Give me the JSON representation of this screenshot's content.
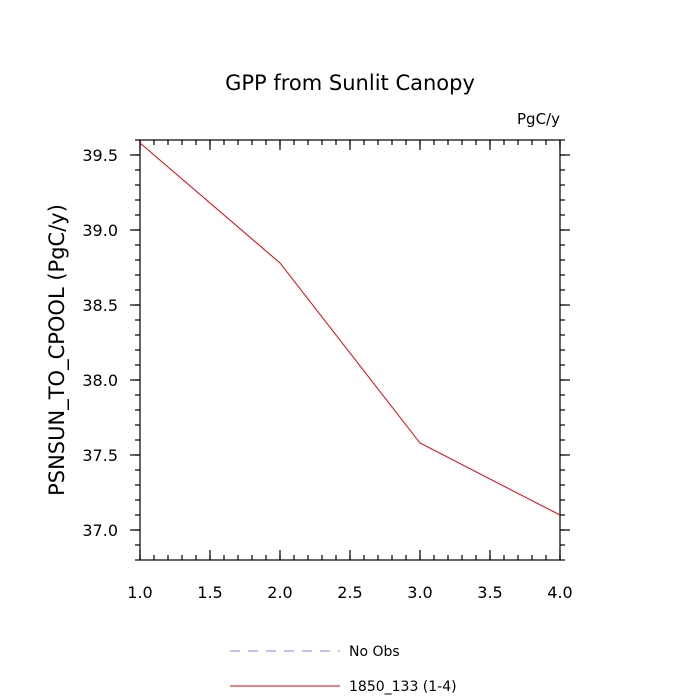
{
  "chart_data": {
    "type": "line",
    "title": "GPP from Sunlit Canopy",
    "units_label": "PgC/y",
    "ylabel": "PSNSUN_TO_CPOOL  (PgC/y)",
    "xlabel": "",
    "xlim": [
      1.0,
      4.0
    ],
    "ylim": [
      36.8,
      39.6
    ],
    "x_ticks": [
      1.0,
      1.5,
      2.0,
      2.5,
      3.0,
      3.5,
      4.0
    ],
    "x_tick_labels": [
      "1.0",
      "1.5",
      "2.0",
      "2.5",
      "3.0",
      "3.5",
      "4.0"
    ],
    "y_ticks": [
      37.0,
      37.5,
      38.0,
      38.5,
      39.0,
      39.5
    ],
    "y_tick_labels": [
      "37.0",
      "37.5",
      "38.0",
      "38.5",
      "39.0",
      "39.5"
    ],
    "grid": false,
    "legend_position": "bottom-center",
    "series": [
      {
        "name": "No Obs",
        "color": "#8080e6",
        "dash": true,
        "x": [],
        "y": []
      },
      {
        "name": "1850_133 (1-4)",
        "color": "#e8000b",
        "dash": false,
        "x": [
          1,
          2,
          3,
          4
        ],
        "y": [
          39.58,
          38.78,
          37.58,
          37.1
        ]
      }
    ]
  }
}
